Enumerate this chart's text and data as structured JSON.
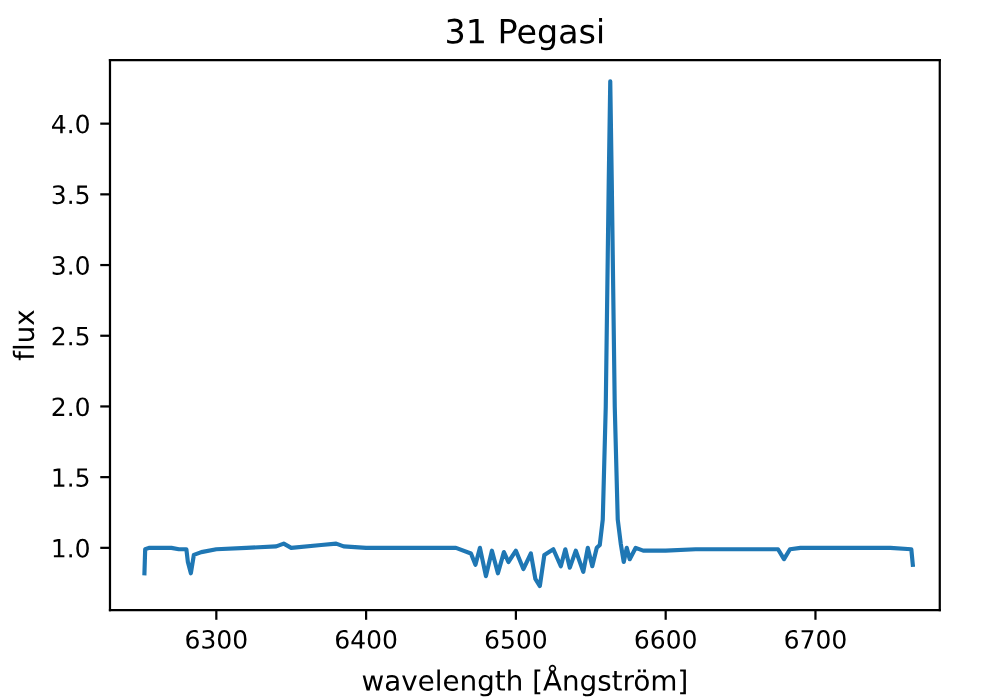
{
  "chart_data": {
    "type": "line",
    "title": "31 Pegasi",
    "xlabel": "wavelength [Ångström]",
    "ylabel": "flux",
    "color": "#1f77b4",
    "x": [
      6252,
      6252.5,
      6255,
      6270,
      6275,
      6280,
      6281,
      6283,
      6285,
      6290,
      6300,
      6320,
      6340,
      6345,
      6350,
      6370,
      6380,
      6385,
      6400,
      6420,
      6440,
      6460,
      6470,
      6473,
      6476,
      6480,
      6484,
      6488,
      6492,
      6495,
      6500,
      6505,
      6510,
      6513,
      6516,
      6519,
      6525,
      6530,
      6533,
      6536,
      6540,
      6545,
      6548,
      6551,
      6554,
      6556,
      6558,
      6560,
      6562,
      6563,
      6564,
      6566,
      6568,
      6570,
      6572,
      6574,
      6576,
      6580,
      6585,
      6600,
      6620,
      6650,
      6675,
      6679,
      6683,
      6690,
      6720,
      6750,
      6764,
      6765
    ],
    "values": [
      0.82,
      0.99,
      1.0,
      1.0,
      0.99,
      0.99,
      0.9,
      0.82,
      0.95,
      0.97,
      0.99,
      1.0,
      1.01,
      1.03,
      1.0,
      1.02,
      1.03,
      1.01,
      1.0,
      1.0,
      1.0,
      1.0,
      0.96,
      0.88,
      1.0,
      0.8,
      0.98,
      0.82,
      0.97,
      0.9,
      0.98,
      0.85,
      0.96,
      0.78,
      0.73,
      0.95,
      0.99,
      0.87,
      0.99,
      0.86,
      0.98,
      0.83,
      1.0,
      0.87,
      1.0,
      1.02,
      1.2,
      2.0,
      3.6,
      4.3,
      3.6,
      2.0,
      1.2,
      1.03,
      0.9,
      1.0,
      0.92,
      1.0,
      0.98,
      0.98,
      0.99,
      0.99,
      0.99,
      0.92,
      0.99,
      1.0,
      1.0,
      1.0,
      0.99,
      0.88
    ],
    "xlim": [
      6229,
      6783
    ],
    "ylim": [
      0.56,
      4.45
    ],
    "xticks": [
      6300,
      6400,
      6500,
      6600,
      6700
    ],
    "yticks": [
      {
        "value": 1,
        "label": "1.0"
      },
      1.5,
      {
        "value": 2,
        "label": "2.0"
      },
      2.5,
      {
        "value": 3,
        "label": "3.0"
      },
      3.5,
      {
        "value": 4,
        "label": "4.0"
      }
    ],
    "grid": false
  }
}
